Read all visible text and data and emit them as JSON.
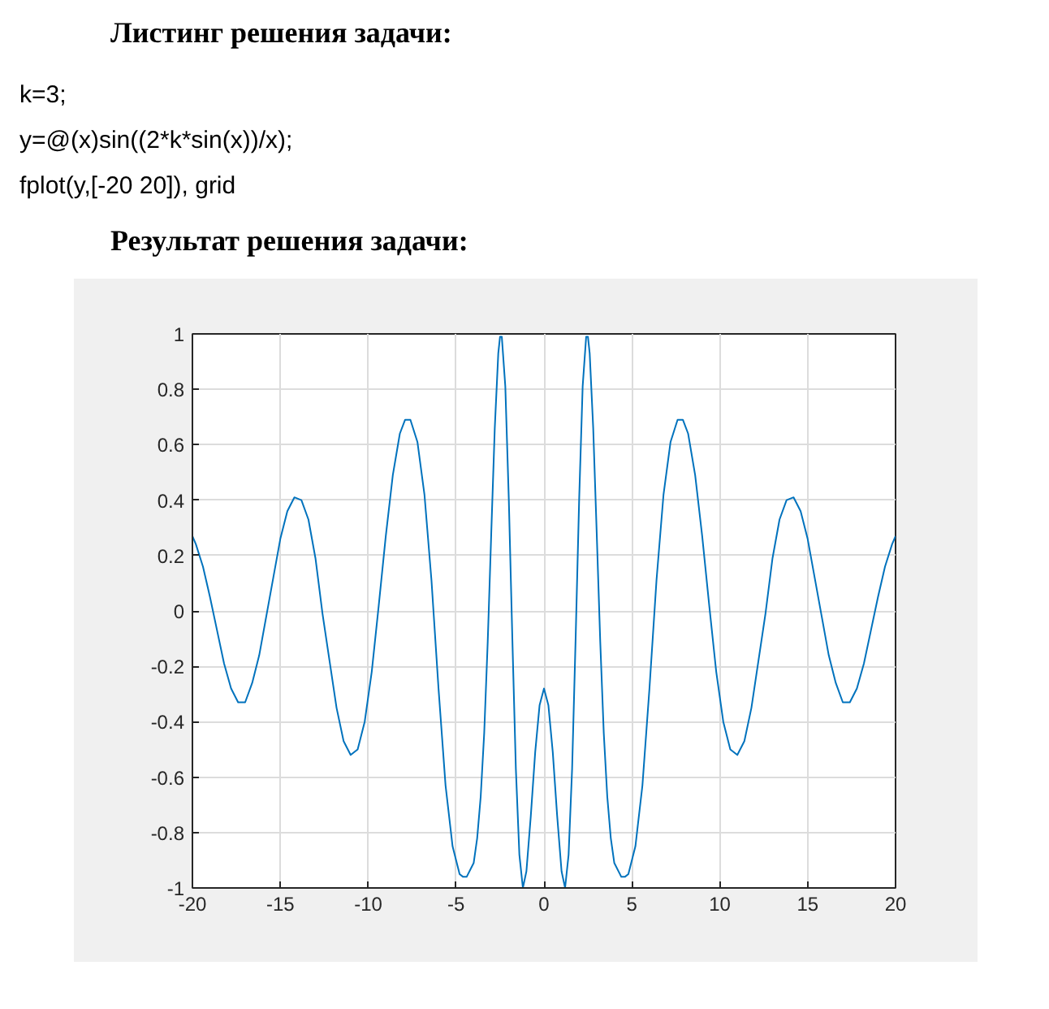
{
  "chart_data": {
    "type": "line",
    "title": "Листинг решения задачи:",
    "subtitle": "Результат решения задачи:",
    "annotations": [
      "k=3;",
      "y=@(x)sin((2*k*sin(x))/x);",
      "fplot(y,[-20 20]), grid"
    ],
    "x": [
      -20,
      -19.8,
      -19.4,
      -19,
      -18.6,
      -18.2,
      -17.8,
      -17.4,
      -17,
      -16.6,
      -16.2,
      -15.8,
      -15.4,
      -15,
      -14.6,
      -14.2,
      -13.8,
      -13.4,
      -13,
      -12.6,
      -12.2,
      -11.8,
      -11.4,
      -11,
      -10.6,
      -10.2,
      -9.8,
      -9.4,
      -9,
      -8.6,
      -8.2,
      -7.9,
      -7.6,
      -7.2,
      -6.8,
      -6.4,
      -6,
      -5.6,
      -5.2,
      -4.8,
      -4.6,
      -4.4,
      -4,
      -3.8,
      -3.6,
      -3.4,
      -3.2,
      -3,
      -2.8,
      -2.6,
      -2.5,
      -2.4,
      -2.2,
      -2,
      -1.8,
      -1.6,
      -1.4,
      -1.2,
      -1,
      -0.75,
      -0.5,
      -0.25,
      0,
      0.25,
      0.5,
      0.75,
      1,
      1.2,
      1.4,
      1.6,
      1.8,
      2,
      2.2,
      2.4,
      2.5,
      2.6,
      2.8,
      3,
      3.2,
      3.4,
      3.6,
      3.8,
      4,
      4.4,
      4.6,
      4.8,
      5.2,
      5.6,
      6,
      6.4,
      6.8,
      7.2,
      7.6,
      7.9,
      8.2,
      8.6,
      9,
      9.4,
      9.8,
      10.2,
      10.6,
      11,
      11.4,
      11.8,
      12.2,
      12.6,
      13,
      13.4,
      13.8,
      14.2,
      14.6,
      15,
      15.4,
      15.8,
      16.2,
      16.6,
      17,
      17.4,
      17.8,
      18.2,
      18.6,
      19,
      19.4,
      19.8,
      20
    ],
    "series": [
      {
        "color": "#0072bd",
        "values": [
          0.27,
          0.24,
          0.16,
          0.05,
          -0.07,
          -0.19,
          -0.28,
          -0.33,
          -0.33,
          -0.26,
          -0.16,
          -0.02,
          0.12,
          0.26,
          0.36,
          0.41,
          0.4,
          0.33,
          0.19,
          -0.01,
          -0.18,
          -0.35,
          -0.47,
          -0.52,
          -0.5,
          -0.4,
          -0.22,
          0.02,
          0.27,
          0.49,
          0.64,
          0.69,
          0.69,
          0.61,
          0.42,
          0.11,
          -0.28,
          -0.63,
          -0.85,
          -0.95,
          -0.96,
          -0.96,
          -0.91,
          -0.82,
          -0.67,
          -0.44,
          -0.11,
          0.28,
          0.66,
          0.93,
          0.99,
          0.99,
          0.81,
          0.4,
          -0.1,
          -0.57,
          -0.88,
          -1,
          -0.94,
          -0.74,
          -0.51,
          -0.34,
          -0.28,
          -0.34,
          -0.51,
          -0.74,
          -0.94,
          -1,
          -0.88,
          -0.57,
          -0.1,
          0.4,
          0.81,
          0.99,
          0.99,
          0.93,
          0.66,
          0.28,
          -0.11,
          -0.44,
          -0.67,
          -0.82,
          -0.91,
          -0.96,
          -0.96,
          -0.95,
          -0.85,
          -0.63,
          -0.28,
          0.11,
          0.42,
          0.61,
          0.69,
          0.69,
          0.64,
          0.49,
          0.27,
          0.02,
          -0.22,
          -0.4,
          -0.5,
          -0.52,
          -0.47,
          -0.35,
          -0.18,
          -0.01,
          0.19,
          0.33,
          0.4,
          0.41,
          0.36,
          0.26,
          0.12,
          -0.02,
          -0.16,
          -0.26,
          -0.33,
          -0.33,
          -0.28,
          -0.19,
          -0.07,
          0.05,
          0.16,
          0.24,
          0.27
        ]
      }
    ],
    "xlim": [
      -20,
      20
    ],
    "ylim": [
      -1,
      1
    ],
    "xticks": [
      -20,
      -15,
      -10,
      -5,
      0,
      5,
      10,
      15,
      20
    ],
    "yticks": [
      -1,
      -0.8,
      -0.6,
      -0.4,
      -0.2,
      0,
      0.2,
      0.4,
      0.6,
      0.8,
      1
    ],
    "grid": true,
    "line_style": "solid"
  }
}
